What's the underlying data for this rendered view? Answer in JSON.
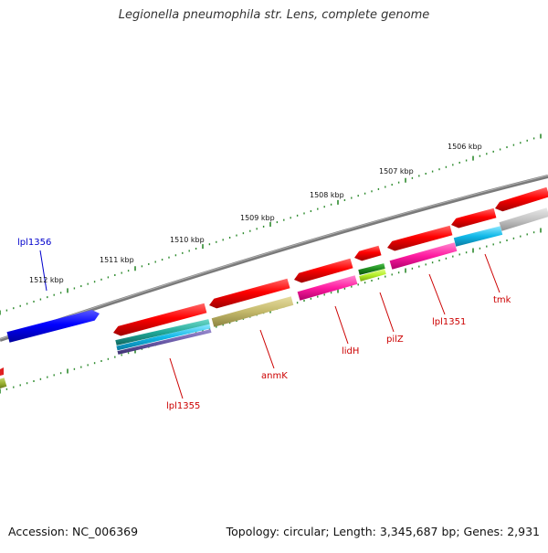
{
  "header": {
    "title": "Legionella pneumophila str. Lens, complete genome"
  },
  "footer": {
    "accession": "Accession: NC_006369",
    "topology": "Topology: circular; Length: 3,345,687 bp; Genes: 2,931"
  },
  "scale": {
    "labels": [
      "1506 kbp",
      "1507 kbp",
      "1508 kbp",
      "1509 kbp",
      "1510 kbp",
      "1511 kbp",
      "1512 kbp"
    ]
  },
  "gene_labels": [
    {
      "text": "lpl1356",
      "color": "#0000cc"
    },
    {
      "text": "lpl1355",
      "color": "#cc0000"
    },
    {
      "text": "anmK",
      "color": "#cc0000"
    },
    {
      "text": "lidH",
      "color": "#cc0000"
    },
    {
      "text": "pilZ",
      "color": "#cc0000"
    },
    {
      "text": "lpl1351",
      "color": "#cc0000"
    },
    {
      "text": "tmk",
      "color": "#cc0000"
    }
  ],
  "colors": {
    "backbone": "#808080",
    "tick_dots": "#2e8b2e",
    "forward_gene": "#ff0000",
    "reverse_gene": "#0000ff",
    "magenta": "#ff2aa5",
    "cyan": "#17bde8",
    "khaki": "#c8bd72",
    "grey": "#c0c0c0",
    "dark_green": "#1e8a1e",
    "light_green": "#b8f030"
  }
}
